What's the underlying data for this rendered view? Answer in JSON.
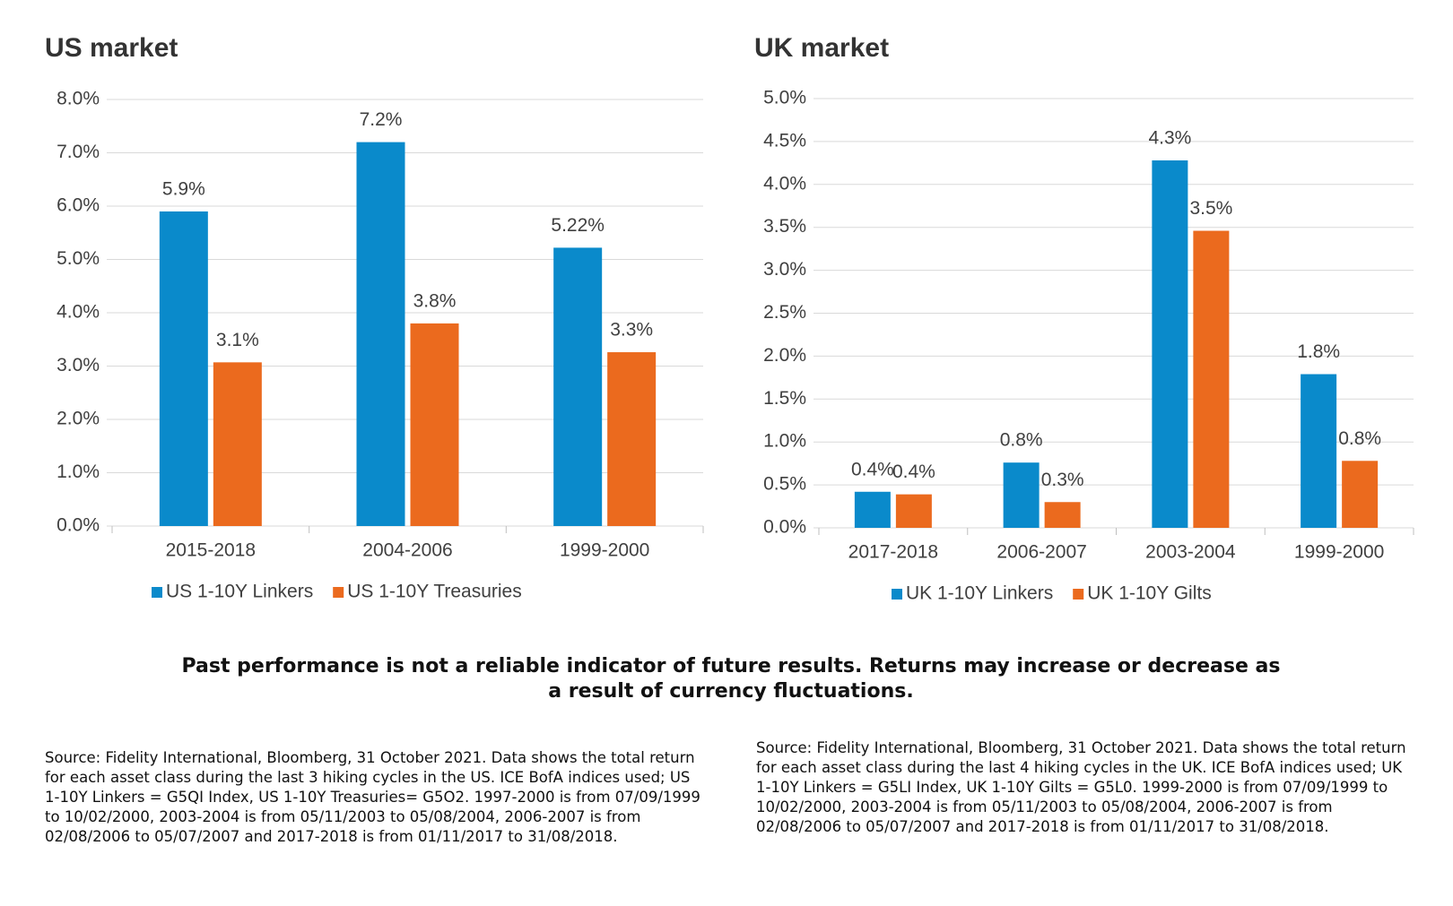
{
  "chart_data": [
    {
      "type": "bar",
      "title": "US market",
      "categories": [
        "2015-2018",
        "2004-2006",
        "1999-2000"
      ],
      "series": [
        {
          "name": "US 1-10Y Linkers",
          "color": "#0a8acb",
          "values": [
            5.9,
            7.2,
            5.22
          ],
          "value_labels": [
            "5.9%",
            "7.2%",
            "5.22%"
          ]
        },
        {
          "name": "US 1-10Y Treasuries",
          "color": "#eb6a1e",
          "values": [
            3.07,
            3.8,
            3.26
          ],
          "value_labels": [
            "3.1%",
            "3.8%",
            "3.3%"
          ]
        }
      ],
      "ylim": [
        0,
        8
      ],
      "yticks": [
        {
          "value": 0,
          "label": "0.0%"
        },
        {
          "value": 1,
          "label": "1.0%"
        },
        {
          "value": 2,
          "label": "2.0%"
        },
        {
          "value": 3,
          "label": "3.0%"
        },
        {
          "value": 4,
          "label": "4.0%"
        },
        {
          "value": 5,
          "label": "5.0%"
        },
        {
          "value": 6,
          "label": "6.0%"
        },
        {
          "value": 7,
          "label": "7.0%"
        },
        {
          "value": 8,
          "label": "8.0%"
        }
      ],
      "grid": true,
      "legend": "bottom",
      "source": "Source: Fidelity International, Bloomberg, 31 October 2021. Data shows the total return for each asset class during the last 3 hiking cycles in the US. ICE BofA indices used; US 1-10Y Linkers = G5QI Index, US 1-10Y Treasuries= G5O2. 1997-2000 is from 07/09/1999 to 10/02/2000, 2003-2004 is from 05/11/2003 to 05/08/2004, 2006-2007 is from 02/08/2006 to 05/07/2007 and 2017-2018 is from 01/11/2017 to 31/08/2018."
    },
    {
      "type": "bar",
      "title": "UK market",
      "categories": [
        "2017-2018",
        "2006-2007",
        "2003-2004",
        "1999-2000"
      ],
      "series": [
        {
          "name": "UK 1-10Y Linkers",
          "color": "#0a8acb",
          "values": [
            0.42,
            0.76,
            4.28,
            1.79
          ],
          "value_labels": [
            "0.4%",
            "0.8%",
            "4.3%",
            "1.8%"
          ]
        },
        {
          "name": "UK 1-10Y Gilts",
          "color": "#eb6a1e",
          "values": [
            0.39,
            0.3,
            3.46,
            0.78
          ],
          "value_labels": [
            "0.4%",
            "0.3%",
            "3.5%",
            "0.8%"
          ]
        }
      ],
      "ylim": [
        0,
        5
      ],
      "yticks": [
        {
          "value": 0,
          "label": "0.0%"
        },
        {
          "value": 0.5,
          "label": "0.5%"
        },
        {
          "value": 1,
          "label": "1.0%"
        },
        {
          "value": 1.5,
          "label": "1.5%"
        },
        {
          "value": 2,
          "label": "2.0%"
        },
        {
          "value": 2.5,
          "label": "2.5%"
        },
        {
          "value": 3,
          "label": "3.0%"
        },
        {
          "value": 3.5,
          "label": "3.5%"
        },
        {
          "value": 4,
          "label": "4.0%"
        },
        {
          "value": 4.5,
          "label": "4.5%"
        },
        {
          "value": 5,
          "label": "5.0%"
        }
      ],
      "grid": true,
      "legend": "bottom",
      "source": "Source: Fidelity International, Bloomberg, 31 October 2021. Data shows the total return for each asset class during the last 4 hiking cycles in the UK. ICE BofA indices used; UK 1-10Y Linkers = G5LI Index, UK 1-10Y Gilts = G5L0. 1999-2000 is from 07/09/1999 to 10/02/2000, 2003-2004 is from 05/11/2003 to 05/08/2004, 2006-2007 is from 02/08/2006 to 05/07/2007 and 2017-2018 is from 01/11/2017 to 31/08/2018."
    }
  ],
  "disclaimer": "Past performance is not a reliable indicator of future results. Returns may increase or decrease as a result of currency fluctuations."
}
